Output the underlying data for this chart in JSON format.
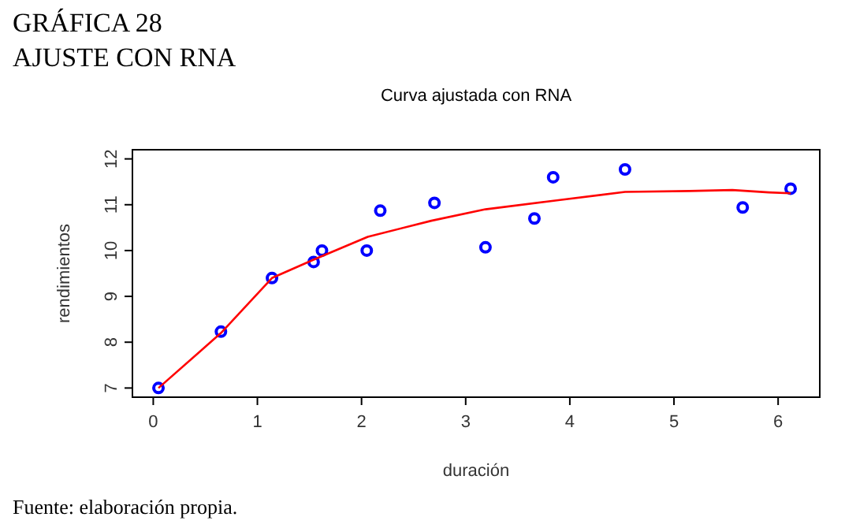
{
  "chart_data": {
    "type": "scatter",
    "title": "Curva ajustada con RNA",
    "xlabel": "duración",
    "ylabel": "rendimientos",
    "annotations": [
      "GRÁFICA 28",
      "AJUSTE CON RNA",
      "Fuente: elaboración propia."
    ],
    "xlim": [
      -0.2,
      6.4
    ],
    "ylim": [
      6.8,
      12.2
    ],
    "xticks": [
      0,
      1,
      2,
      3,
      4,
      5,
      6
    ],
    "yticks": [
      7,
      8,
      9,
      10,
      11,
      12
    ],
    "grid": false,
    "series": [
      {
        "color": "#0000ff",
        "marker": "circle",
        "x": [
          0.05,
          0.65,
          1.14,
          1.54,
          1.62,
          2.05,
          2.18,
          2.7,
          3.19,
          3.66,
          3.84,
          4.53,
          5.66,
          6.12
        ],
        "values": [
          7.0,
          8.23,
          9.4,
          9.75,
          10.0,
          10.0,
          10.87,
          11.04,
          10.07,
          10.7,
          11.6,
          11.77,
          10.94,
          11.35
        ]
      },
      {
        "type": "line",
        "color": "#ff0000",
        "marker": "none",
        "line_style": "solid",
        "x": [
          0.05,
          0.65,
          1.14,
          1.54,
          2.06,
          2.67,
          3.19,
          3.89,
          4.53,
          5.15,
          5.56,
          5.91,
          6.12
        ],
        "values": [
          7.0,
          8.2,
          9.4,
          9.8,
          10.3,
          10.65,
          10.9,
          11.1,
          11.28,
          11.3,
          11.32,
          11.27,
          11.25
        ]
      }
    ]
  }
}
